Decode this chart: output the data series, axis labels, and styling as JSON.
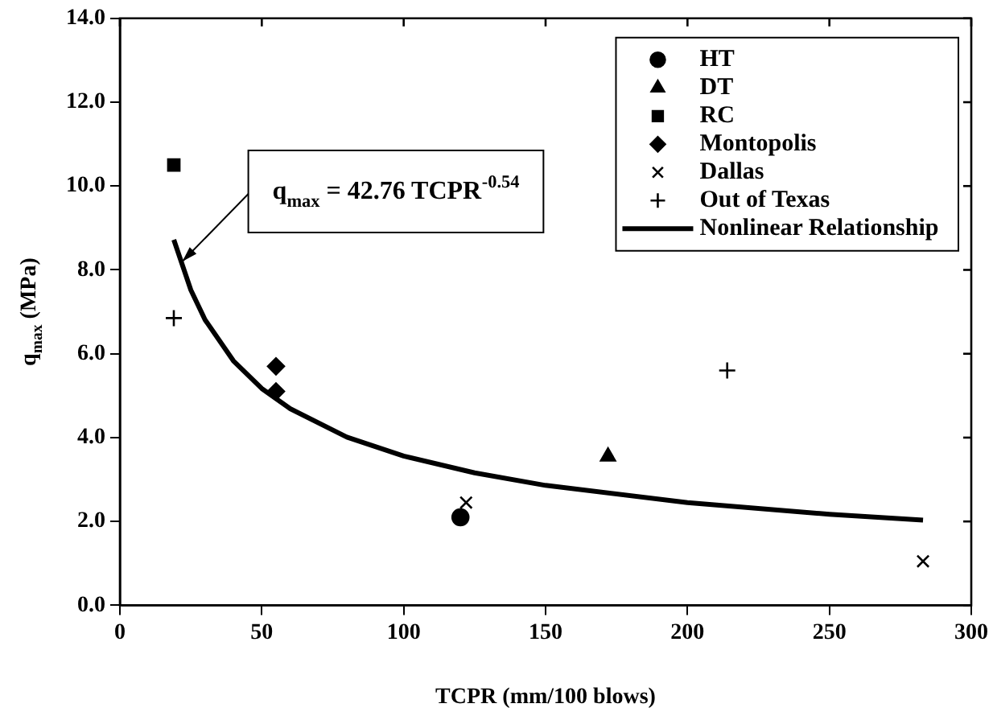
{
  "chart_data": {
    "type": "scatter",
    "xlabel": "TCPR (mm/100 blows)",
    "ylabel": "q$_{max}$ (MPa)",
    "xlim": [
      0,
      300
    ],
    "xticks": [
      0,
      50,
      100,
      150,
      200,
      250,
      300
    ],
    "ylim": [
      0,
      14
    ],
    "yticks": [
      {
        "value": 0,
        "label": "0.0"
      },
      {
        "value": 2,
        "label": "2.0"
      },
      {
        "value": 4,
        "label": "4.0"
      },
      {
        "value": 6,
        "label": "6.0"
      },
      {
        "value": 8,
        "label": "8.0"
      },
      {
        "value": 10,
        "label": "10.0"
      },
      {
        "value": 12,
        "label": "12.0"
      },
      {
        "value": 14,
        "label": "14.0"
      }
    ],
    "grid": false,
    "legend": "top right",
    "annotations": [
      {
        "text": "q$_{max}$ = 42.76 TCPR$^{-0.54}$",
        "x": 22,
        "y": 8.2
      }
    ],
    "series": [
      {
        "name": "HT",
        "color": "#000000",
        "marker": "circle",
        "x": [
          120
        ],
        "values": [
          2.1
        ]
      },
      {
        "name": "DT",
        "color": "#000000",
        "marker": "triangle",
        "x": [
          172
        ],
        "values": [
          3.55
        ]
      },
      {
        "name": "RC",
        "color": "#000000",
        "marker": "square",
        "x": [
          19
        ],
        "values": [
          10.5
        ]
      },
      {
        "name": "Montopolis",
        "color": "#000000",
        "marker": "diamond",
        "x": [
          55,
          55
        ],
        "values": [
          5.7,
          5.1
        ]
      },
      {
        "name": "Dallas",
        "color": "#000000",
        "marker": "cross",
        "x": [
          122,
          283
        ],
        "values": [
          2.45,
          1.05
        ]
      },
      {
        "name": "Out of Texas",
        "color": "#000000",
        "marker": "plus",
        "x": [
          19,
          214
        ],
        "values": [
          6.85,
          5.6
        ]
      },
      {
        "name": "Nonlinear Relationship",
        "type": "line",
        "color": "#000000",
        "marker": "none",
        "line_style": "solid",
        "x": [
          19,
          25,
          30,
          40,
          50,
          60,
          80,
          100,
          125,
          150,
          200,
          250,
          283
        ],
        "values": [
          8.72,
          7.52,
          6.81,
          5.83,
          5.17,
          4.69,
          4.01,
          3.56,
          3.16,
          2.86,
          2.45,
          2.17,
          2.03
        ]
      }
    ]
  }
}
